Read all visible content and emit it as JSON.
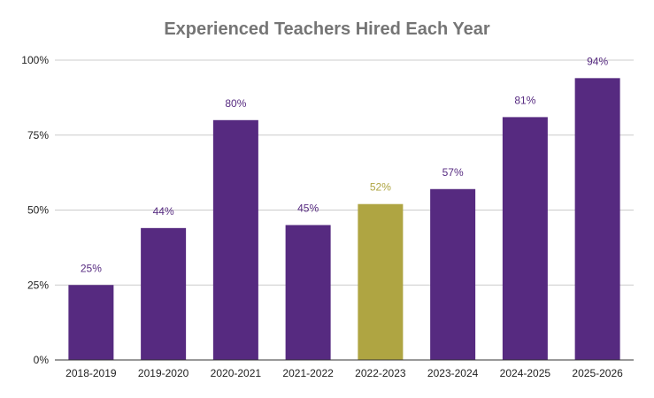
{
  "chart_data": {
    "type": "bar",
    "title": "Experienced Teachers Hired Each Year",
    "xlabel": "",
    "ylabel": "",
    "categories": [
      "2018-2019",
      "2019-2020",
      "2020-2021",
      "2021-2022",
      "2022-2023",
      "2023-2024",
      "2024-2025",
      "2025-2026"
    ],
    "values": [
      25,
      44,
      80,
      45,
      52,
      57,
      81,
      94
    ],
    "data_labels": [
      "25%",
      "44%",
      "80%",
      "45%",
      "52%",
      "57%",
      "81%",
      "94%"
    ],
    "ylim": [
      0,
      100
    ],
    "y_ticks": [
      0,
      25,
      50,
      75,
      100
    ],
    "y_tick_labels": [
      "0%",
      "25%",
      "50%",
      "75%",
      "100%"
    ],
    "grid": true,
    "legend": "none",
    "colors": {
      "bar_default": "#562a80",
      "bar_highlight": "#afa542",
      "label_default": "#562a80",
      "label_highlight": "#afa542",
      "title": "#757575",
      "gridline": "#cccccc",
      "axis_line": "#333333",
      "tick_text": "#222222"
    },
    "highlight_index": 4
  }
}
